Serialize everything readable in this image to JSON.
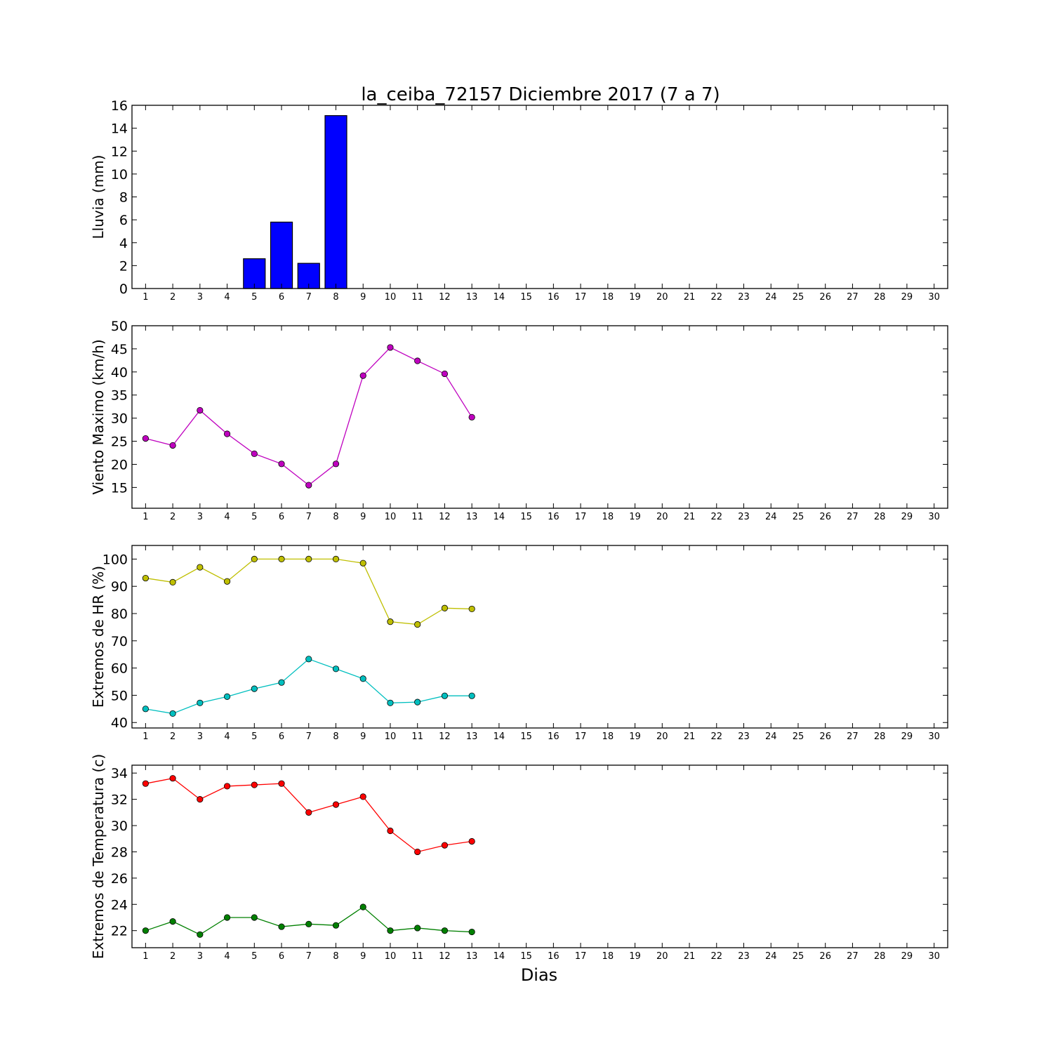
{
  "figure": {
    "title": "la_ceiba_72157 Diciembre 2017  (7 a 7)",
    "xlabel": "Dias"
  },
  "chart_data": [
    {
      "type": "bar",
      "ylabel": "Lluvia (mm)",
      "xlim": [
        0.5,
        30.5
      ],
      "ylim": [
        0,
        16
      ],
      "yticks": [
        0,
        2,
        4,
        6,
        8,
        10,
        12,
        14,
        16
      ],
      "categories": [
        1,
        2,
        3,
        4,
        5,
        6,
        7,
        8,
        9,
        10,
        11,
        12,
        13,
        14,
        15,
        16,
        17,
        18,
        19,
        20,
        21,
        22,
        23,
        24,
        25,
        26,
        27,
        28,
        29,
        30
      ],
      "series": [
        {
          "color": "#0000ff",
          "x": [
            1,
            2,
            3,
            4,
            5,
            6,
            7,
            8,
            9,
            10,
            11,
            12,
            13
          ],
          "values": [
            0,
            0,
            0,
            0,
            2.6,
            5.8,
            2.2,
            15.1,
            0,
            0,
            0,
            0,
            0
          ]
        }
      ]
    },
    {
      "type": "line",
      "ylabel": "Viento Maximo (km/h)",
      "xlim": [
        0.5,
        30.5
      ],
      "ylim": [
        10.5,
        50
      ],
      "yticks": [
        15,
        20,
        25,
        30,
        35,
        40,
        45,
        50
      ],
      "categories": [
        1,
        2,
        3,
        4,
        5,
        6,
        7,
        8,
        9,
        10,
        11,
        12,
        13,
        14,
        15,
        16,
        17,
        18,
        19,
        20,
        21,
        22,
        23,
        24,
        25,
        26,
        27,
        28,
        29,
        30
      ],
      "series": [
        {
          "color": "#bf00bf",
          "x": [
            1,
            2,
            3,
            4,
            5,
            6,
            7,
            8,
            9,
            10,
            11,
            12,
            13
          ],
          "values": [
            25.6,
            24.1,
            31.7,
            26.6,
            22.3,
            20.1,
            15.5,
            20.1,
            39.2,
            45.3,
            42.4,
            39.6,
            30.2
          ]
        }
      ]
    },
    {
      "type": "line",
      "ylabel": "Extremos de HR (%)",
      "xlim": [
        0.5,
        30.5
      ],
      "ylim": [
        38,
        105
      ],
      "yticks": [
        40,
        50,
        60,
        70,
        80,
        90,
        100
      ],
      "categories": [
        1,
        2,
        3,
        4,
        5,
        6,
        7,
        8,
        9,
        10,
        11,
        12,
        13,
        14,
        15,
        16,
        17,
        18,
        19,
        20,
        21,
        22,
        23,
        24,
        25,
        26,
        27,
        28,
        29,
        30
      ],
      "series": [
        {
          "color": "#bfbf00",
          "x": [
            1,
            2,
            3,
            4,
            5,
            6,
            7,
            8,
            9,
            10,
            11,
            12,
            13
          ],
          "values": [
            93,
            91.5,
            97,
            91.8,
            100,
            100,
            100,
            100,
            98.5,
            77,
            76,
            82,
            81.7
          ]
        },
        {
          "color": "#00bfbf",
          "x": [
            1,
            2,
            3,
            4,
            5,
            6,
            7,
            8,
            9,
            10,
            11,
            12,
            13
          ],
          "values": [
            45,
            43.3,
            47.2,
            49.5,
            52.4,
            54.7,
            63.3,
            59.7,
            56.1,
            47.2,
            47.5,
            49.8,
            49.8
          ]
        }
      ]
    },
    {
      "type": "line",
      "ylabel": "Extremos de Temperatura (c)",
      "xlim": [
        0.5,
        30.5
      ],
      "ylim": [
        20.7,
        34.6
      ],
      "yticks": [
        22,
        24,
        26,
        28,
        30,
        32,
        34
      ],
      "categories": [
        1,
        2,
        3,
        4,
        5,
        6,
        7,
        8,
        9,
        10,
        11,
        12,
        13,
        14,
        15,
        16,
        17,
        18,
        19,
        20,
        21,
        22,
        23,
        24,
        25,
        26,
        27,
        28,
        29,
        30
      ],
      "series": [
        {
          "color": "#ff0000",
          "x": [
            1,
            2,
            3,
            4,
            5,
            6,
            7,
            8,
            9,
            10,
            11,
            12,
            13
          ],
          "values": [
            33.2,
            33.6,
            32,
            33,
            33.1,
            33.2,
            31,
            31.6,
            32.2,
            29.6,
            28,
            28.5,
            28.8
          ]
        },
        {
          "color": "#008000",
          "x": [
            1,
            2,
            3,
            4,
            5,
            6,
            7,
            8,
            9,
            10,
            11,
            12,
            13
          ],
          "values": [
            22,
            22.7,
            21.7,
            23,
            23,
            22.3,
            22.5,
            22.4,
            23.8,
            22,
            22.2,
            22,
            21.9
          ]
        }
      ]
    }
  ]
}
